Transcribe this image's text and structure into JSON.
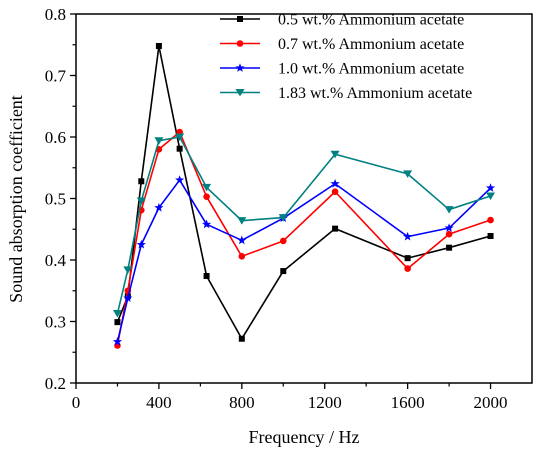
{
  "chart_data": {
    "type": "line",
    "title": "",
    "xlabel": "Frequency / Hz",
    "ylabel": "Sound absorption coefficient",
    "xlim": [
      0,
      2200
    ],
    "ylim": [
      0.2,
      0.8
    ],
    "xticks": [
      0,
      400,
      800,
      1200,
      1600,
      2000
    ],
    "yticks": [
      0.2,
      0.3,
      0.4,
      0.5,
      0.6,
      0.7,
      0.8
    ],
    "ytick_labels": [
      "0.2",
      "0.3",
      "0.4",
      "0.5",
      "0.6",
      "0.7",
      "0.8"
    ],
    "grid": false,
    "legend_position": "top-right",
    "x": [
      200,
      250,
      315,
      400,
      500,
      630,
      800,
      1000,
      1250,
      1600,
      1800,
      2000
    ],
    "series": [
      {
        "name": "0.5 wt.% Ammonium acetate",
        "color": "#000000",
        "marker": "square",
        "values": [
          0.299,
          0.341,
          0.528,
          0.748,
          0.581,
          0.374,
          0.272,
          0.382,
          0.451,
          0.403,
          0.42,
          0.439
        ]
      },
      {
        "name": "0.7 wt.% Ammonium acetate",
        "color": "#ff0000",
        "marker": "circle",
        "values": [
          0.261,
          0.35,
          0.481,
          0.58,
          0.608,
          0.503,
          0.406,
          0.431,
          0.511,
          0.386,
          0.442,
          0.465
        ]
      },
      {
        "name": "1.0 wt.% Ammonium acetate",
        "color": "#0000ff",
        "marker": "star",
        "values": [
          0.267,
          0.338,
          0.425,
          0.485,
          0.53,
          0.458,
          0.432,
          0.468,
          0.524,
          0.438,
          0.452,
          0.517
        ]
      },
      {
        "name": "1.83 wt.% Ammonium acetate",
        "color": "#008080",
        "marker": "triangle-down",
        "values": [
          0.313,
          0.384,
          0.496,
          0.594,
          0.6,
          0.518,
          0.464,
          0.469,
          0.572,
          0.54,
          0.482,
          0.504
        ]
      }
    ]
  }
}
